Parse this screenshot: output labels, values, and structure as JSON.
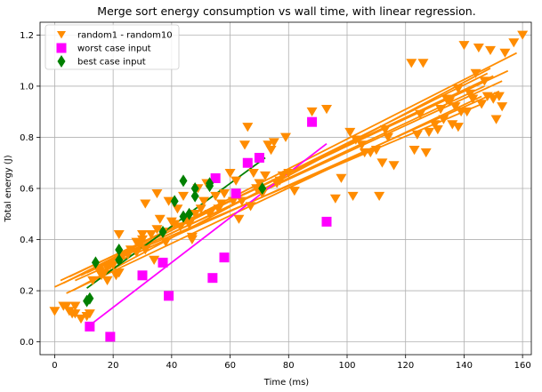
{
  "chart_data": {
    "type": "scatter",
    "title": "Merge sort energy consumption vs wall time, with linear regression.",
    "xlabel": "Time (ms)",
    "ylabel": "Total energy (J)",
    "xlim": [
      -5,
      163
    ],
    "ylim": [
      -0.05,
      1.25
    ],
    "xticks": [
      0,
      20,
      40,
      60,
      80,
      100,
      120,
      140,
      160
    ],
    "yticks": [
      0.0,
      0.2,
      0.4,
      0.6,
      0.8,
      1.0,
      1.2
    ],
    "grid": true,
    "legend_position": "top-left",
    "legend": [
      {
        "label": "random1 - random10",
        "marker": "triangle-down",
        "color": "#ff8c00"
      },
      {
        "label": "worst case input",
        "marker": "square",
        "color": "#ff00ff"
      },
      {
        "label": "best case input",
        "marker": "diamond",
        "color": "#008000"
      }
    ],
    "series": [
      {
        "name": "random1 - random10",
        "marker": "triangle-down",
        "color": "#ff8c00",
        "points": [
          [
            0,
            0.12
          ],
          [
            3,
            0.14
          ],
          [
            4,
            0.14
          ],
          [
            5,
            0.12
          ],
          [
            6,
            0.11
          ],
          [
            7,
            0.11
          ],
          [
            7,
            0.14
          ],
          [
            9,
            0.09
          ],
          [
            11,
            0.1
          ],
          [
            12,
            0.11
          ],
          [
            13,
            0.24
          ],
          [
            15,
            0.28
          ],
          [
            16,
            0.26
          ],
          [
            17,
            0.27
          ],
          [
            18,
            0.24
          ],
          [
            18,
            0.29
          ],
          [
            19,
            0.3
          ],
          [
            20,
            0.3
          ],
          [
            21,
            0.26
          ],
          [
            22,
            0.27
          ],
          [
            22,
            0.42
          ],
          [
            23,
            0.33
          ],
          [
            25,
            0.34
          ],
          [
            26,
            0.36
          ],
          [
            28,
            0.35
          ],
          [
            28,
            0.39
          ],
          [
            29,
            0.38
          ],
          [
            30,
            0.42
          ],
          [
            30,
            0.4
          ],
          [
            31,
            0.36
          ],
          [
            31,
            0.54
          ],
          [
            33,
            0.42
          ],
          [
            34,
            0.32
          ],
          [
            35,
            0.44
          ],
          [
            35,
            0.58
          ],
          [
            36,
            0.48
          ],
          [
            37,
            0.43
          ],
          [
            38,
            0.39
          ],
          [
            39,
            0.55
          ],
          [
            40,
            0.47
          ],
          [
            41,
            0.46
          ],
          [
            42,
            0.52
          ],
          [
            43,
            0.45
          ],
          [
            44,
            0.57
          ],
          [
            45,
            0.48
          ],
          [
            46,
            0.46
          ],
          [
            47,
            0.41
          ],
          [
            47,
            0.4
          ],
          [
            48,
            0.5
          ],
          [
            49,
            0.6
          ],
          [
            50,
            0.52
          ],
          [
            51,
            0.55
          ],
          [
            52,
            0.62
          ],
          [
            53,
            0.5
          ],
          [
            55,
            0.57
          ],
          [
            56,
            0.52
          ],
          [
            57,
            0.54
          ],
          [
            58,
            0.58
          ],
          [
            60,
            0.66
          ],
          [
            61,
            0.55
          ],
          [
            62,
            0.63
          ],
          [
            63,
            0.48
          ],
          [
            64,
            0.55
          ],
          [
            65,
            0.77
          ],
          [
            66,
            0.84
          ],
          [
            67,
            0.53
          ],
          [
            68,
            0.66
          ],
          [
            69,
            0.6
          ],
          [
            70,
            0.62
          ],
          [
            71,
            0.58
          ],
          [
            72,
            0.65
          ],
          [
            73,
            0.77
          ],
          [
            74,
            0.75
          ],
          [
            75,
            0.78
          ],
          [
            76,
            0.62
          ],
          [
            77,
            0.63
          ],
          [
            78,
            0.65
          ],
          [
            79,
            0.8
          ],
          [
            80,
            0.66
          ],
          [
            82,
            0.59
          ],
          [
            88,
            0.9
          ],
          [
            93,
            0.91
          ],
          [
            96,
            0.56
          ],
          [
            98,
            0.64
          ],
          [
            101,
            0.82
          ],
          [
            102,
            0.57
          ],
          [
            103,
            0.79
          ],
          [
            105,
            0.77
          ],
          [
            106,
            0.74
          ],
          [
            108,
            0.74
          ],
          [
            110,
            0.75
          ],
          [
            111,
            0.57
          ],
          [
            112,
            0.7
          ],
          [
            113,
            0.83
          ],
          [
            114,
            0.8
          ],
          [
            116,
            0.69
          ],
          [
            122,
            1.09
          ],
          [
            123,
            0.75
          ],
          [
            124,
            0.81
          ],
          [
            125,
            0.89
          ],
          [
            126,
            1.09
          ],
          [
            127,
            0.74
          ],
          [
            128,
            0.82
          ],
          [
            130,
            0.85
          ],
          [
            131,
            0.83
          ],
          [
            132,
            0.91
          ],
          [
            133,
            0.87
          ],
          [
            134,
            0.95
          ],
          [
            135,
            0.94
          ],
          [
            136,
            0.85
          ],
          [
            137,
            0.92
          ],
          [
            138,
            0.84
          ],
          [
            138,
            0.99
          ],
          [
            139,
            0.9
          ],
          [
            140,
            1.16
          ],
          [
            141,
            0.9
          ],
          [
            142,
            0.97
          ],
          [
            143,
            0.95
          ],
          [
            144,
            1.05
          ],
          [
            145,
            1.15
          ],
          [
            146,
            0.93
          ],
          [
            147,
            1.02
          ],
          [
            148,
            0.96
          ],
          [
            149,
            1.14
          ],
          [
            150,
            0.95
          ],
          [
            151,
            0.87
          ],
          [
            152,
            0.96
          ],
          [
            153,
            0.92
          ],
          [
            154,
            1.13
          ],
          [
            157,
            1.17
          ],
          [
            160,
            1.2
          ]
        ],
        "fits": [
          {
            "x": [
              0,
              153
            ],
            "y": [
              0.215,
              1.02
            ]
          },
          {
            "x": [
              2,
              155
            ],
            "y": [
              0.24,
              1.06
            ]
          },
          {
            "x": [
              3,
              158
            ],
            "y": [
              0.23,
              1.13
            ]
          },
          {
            "x": [
              4,
              146
            ],
            "y": [
              0.19,
              0.96
            ]
          },
          {
            "x": [
              5,
              150
            ],
            "y": [
              0.255,
              1.04
            ]
          },
          {
            "x": [
              6,
              149
            ],
            "y": [
              0.2,
              1.07
            ]
          },
          {
            "x": [
              7,
              152
            ],
            "y": [
              0.24,
              0.98
            ]
          },
          {
            "x": [
              9,
              148
            ],
            "y": [
              0.26,
              1.05
            ]
          },
          {
            "x": [
              11,
              147
            ],
            "y": [
              0.27,
              1.0
            ]
          },
          {
            "x": [
              12,
              146
            ],
            "y": [
              0.28,
              0.93
            ]
          }
        ]
      },
      {
        "name": "worst case input",
        "marker": "square",
        "color": "#ff00ff",
        "points": [
          [
            12,
            0.06
          ],
          [
            19,
            0.02
          ],
          [
            30,
            0.26
          ],
          [
            37,
            0.31
          ],
          [
            39,
            0.18
          ],
          [
            54,
            0.25
          ],
          [
            55,
            0.64
          ],
          [
            58,
            0.33
          ],
          [
            62,
            0.58
          ],
          [
            66,
            0.7
          ],
          [
            70,
            0.72
          ],
          [
            88,
            0.86
          ],
          [
            93,
            0.47
          ]
        ],
        "fits": [
          {
            "x": [
              12,
              93
            ],
            "y": [
              0.065,
              0.775
            ]
          }
        ]
      },
      {
        "name": "best case input",
        "marker": "diamond",
        "color": "#008000",
        "points": [
          [
            11,
            0.16
          ],
          [
            12,
            0.17
          ],
          [
            14,
            0.31
          ],
          [
            22,
            0.36
          ],
          [
            22,
            0.32
          ],
          [
            37,
            0.43
          ],
          [
            41,
            0.55
          ],
          [
            44,
            0.49
          ],
          [
            44,
            0.63
          ],
          [
            46,
            0.5
          ],
          [
            48,
            0.6
          ],
          [
            48,
            0.57
          ],
          [
            53,
            0.62
          ],
          [
            53,
            0.61
          ],
          [
            71,
            0.6
          ]
        ],
        "fits": [
          {
            "x": [
              11,
              72
            ],
            "y": [
              0.21,
              0.72
            ]
          }
        ]
      }
    ]
  }
}
